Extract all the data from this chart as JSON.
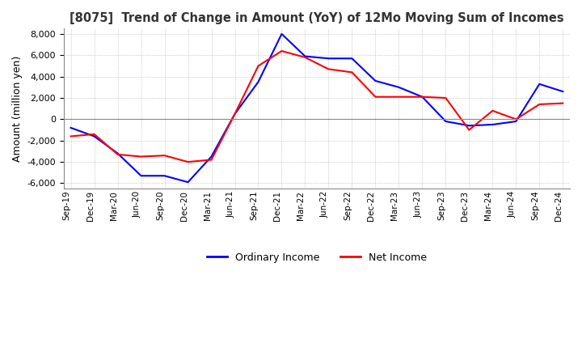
{
  "title": "[8075]  Trend of Change in Amount (YoY) of 12Mo Moving Sum of Incomes",
  "ylabel": "Amount (million yen)",
  "ylim": [
    -6500,
    8500
  ],
  "yticks": [
    -6000,
    -4000,
    -2000,
    0,
    2000,
    4000,
    6000,
    8000
  ],
  "background_color": "#ffffff",
  "grid_color": "#aaaaaa",
  "ordinary_income_color": "#0000ff",
  "net_income_color": "#ff0000",
  "x_labels": [
    "Sep-19",
    "Dec-19",
    "Mar-20",
    "Jun-20",
    "Sep-20",
    "Dec-20",
    "Mar-21",
    "Jun-21",
    "Sep-21",
    "Dec-21",
    "Mar-22",
    "Jun-22",
    "Sep-22",
    "Dec-22",
    "Mar-23",
    "Jun-23",
    "Sep-23",
    "Dec-23",
    "Mar-24",
    "Jun-24",
    "Sep-24",
    "Dec-24"
  ],
  "ordinary_income": [
    -800,
    -1600,
    -3200,
    -5300,
    -5300,
    -5900,
    -3500,
    500,
    3500,
    8000,
    5900,
    5700,
    5700,
    3600,
    3000,
    2100,
    -200,
    -600,
    -500,
    -200,
    3300,
    2600
  ],
  "net_income": [
    -1600,
    -1400,
    -3300,
    -3500,
    -3400,
    -4000,
    -3800,
    500,
    5000,
    6400,
    5800,
    4700,
    4400,
    2100,
    2100,
    2100,
    2000,
    -1000,
    800,
    0,
    1400,
    1500
  ]
}
